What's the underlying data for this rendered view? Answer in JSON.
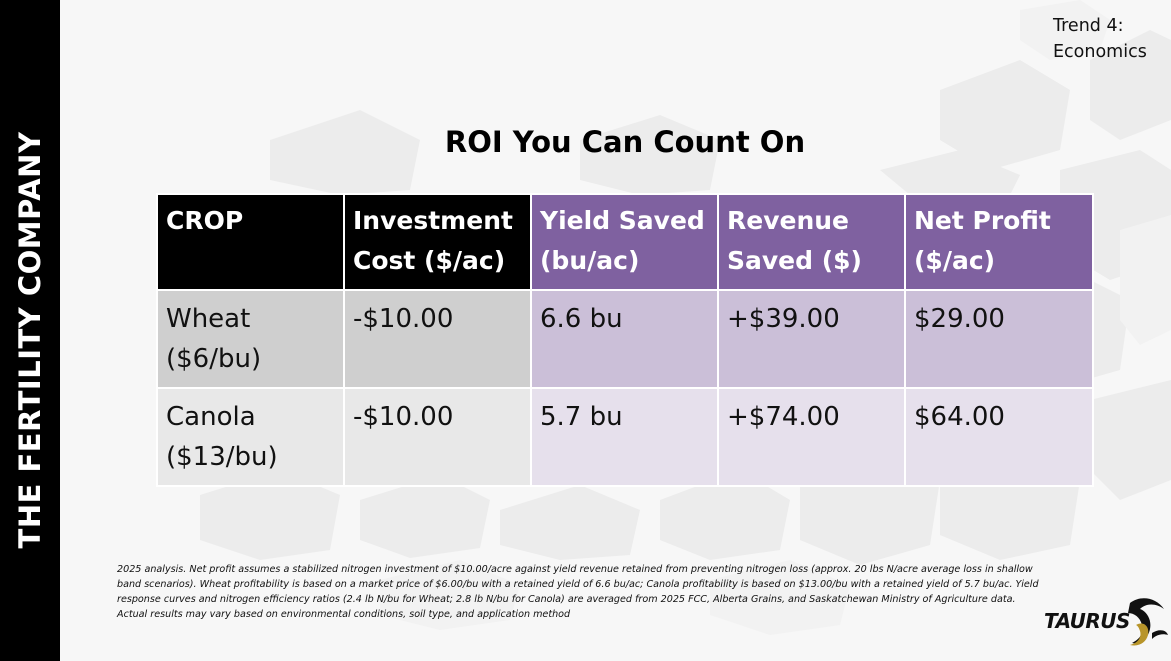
{
  "sidebar": {
    "company_text": "THE FERTILITY COMPANY"
  },
  "header": {
    "trend_line1": "Trend 4:",
    "trend_line2": "Economics"
  },
  "title": "ROI You Can Count On",
  "table": {
    "headers": [
      {
        "line1": "CROP",
        "line2": ""
      },
      {
        "line1": "Investment",
        "line2": "Cost ($/ac)"
      },
      {
        "line1": "Yield Saved",
        "line2": "(bu/ac)"
      },
      {
        "line1": "Revenue",
        "line2": "Saved ($)"
      },
      {
        "line1": "Net Profit",
        "line2": "($/ac)"
      }
    ],
    "rows": [
      {
        "crop_line1": "Wheat",
        "crop_line2": "($6/bu)",
        "investment": "-$10.00",
        "yield_saved": "6.6 bu",
        "revenue_saved": "+$39.00",
        "net_profit": "$29.00"
      },
      {
        "crop_line1": "Canola",
        "crop_line2": "($13/bu)",
        "investment": "-$10.00",
        "yield_saved": "5.7 bu",
        "revenue_saved": "+$74.00",
        "net_profit": "$64.00"
      }
    ]
  },
  "footnote": "2025 analysis. Net profit assumes a stabilized nitrogen investment of $10.00/acre against yield revenue retained from preventing nitrogen loss (approx. 20 lbs N/acre average loss in shallow band scenarios). Wheat profitability is based on a market price of $6.00/bu with a retained yield of 6.6 bu/ac; Canola profitability is based on $13.00/bu with a retained yield of 5.7 bu/ac. Yield response curves and nitrogen efficiency ratios (2.4 lb N/bu for Wheat; 2.8 lb N/bu for Canola) are averaged from 2025 FCC, Alberta Grains, and Saskatchewan Ministry of Agriculture data. Actual results may vary based on environmental conditions, soil type, and application method",
  "logo": {
    "text": "TAURUS"
  },
  "colors": {
    "sidebar": "#000000",
    "header_dark": "#000000",
    "header_purple": "#7f61a0",
    "row_purple_1": "#cbbfd8",
    "row_purple_2": "#e6e0ec",
    "row_grey_1": "#cfcfcf",
    "row_grey_2": "#e8e8e8",
    "logo_gold": "#b8952a"
  }
}
